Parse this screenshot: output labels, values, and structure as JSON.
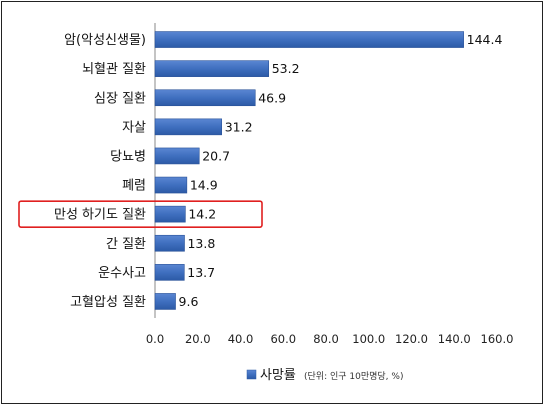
{
  "chart_data": {
    "type": "bar",
    "orientation": "horizontal",
    "categories": [
      "암(악성신생물)",
      "뇌혈관 질환",
      "심장 질환",
      "자살",
      "당뇨병",
      "폐렴",
      "만성 하기도 질환",
      "간 질환",
      "운수사고",
      "고혈압성 질환"
    ],
    "series": [
      {
        "name": "사망률",
        "values": [
          144.4,
          53.2,
          46.9,
          31.2,
          20.7,
          14.9,
          14.2,
          13.8,
          13.7,
          9.6
        ],
        "value_labels": [
          "144.4",
          "53.2",
          "46.9",
          "31.2",
          "20.7",
          "14.9",
          "14.2",
          "13.8",
          "13.7",
          "9.6"
        ]
      }
    ],
    "xlim": [
      0,
      160
    ],
    "x_ticks": [
      "0.0",
      "20.0",
      "40.0",
      "60.0",
      "80.0",
      "100.0",
      "120.0",
      "140.0",
      "160.0"
    ],
    "highlighted_category": "만성 하기도 질환",
    "legend": {
      "label": "사망률",
      "note": "(단위: 인구 10만명당, %)",
      "position": "bottom"
    },
    "grid": false,
    "colors": {
      "bar": "#3f6fbf",
      "highlight_box": "#e02020",
      "axis": "#888888"
    }
  }
}
